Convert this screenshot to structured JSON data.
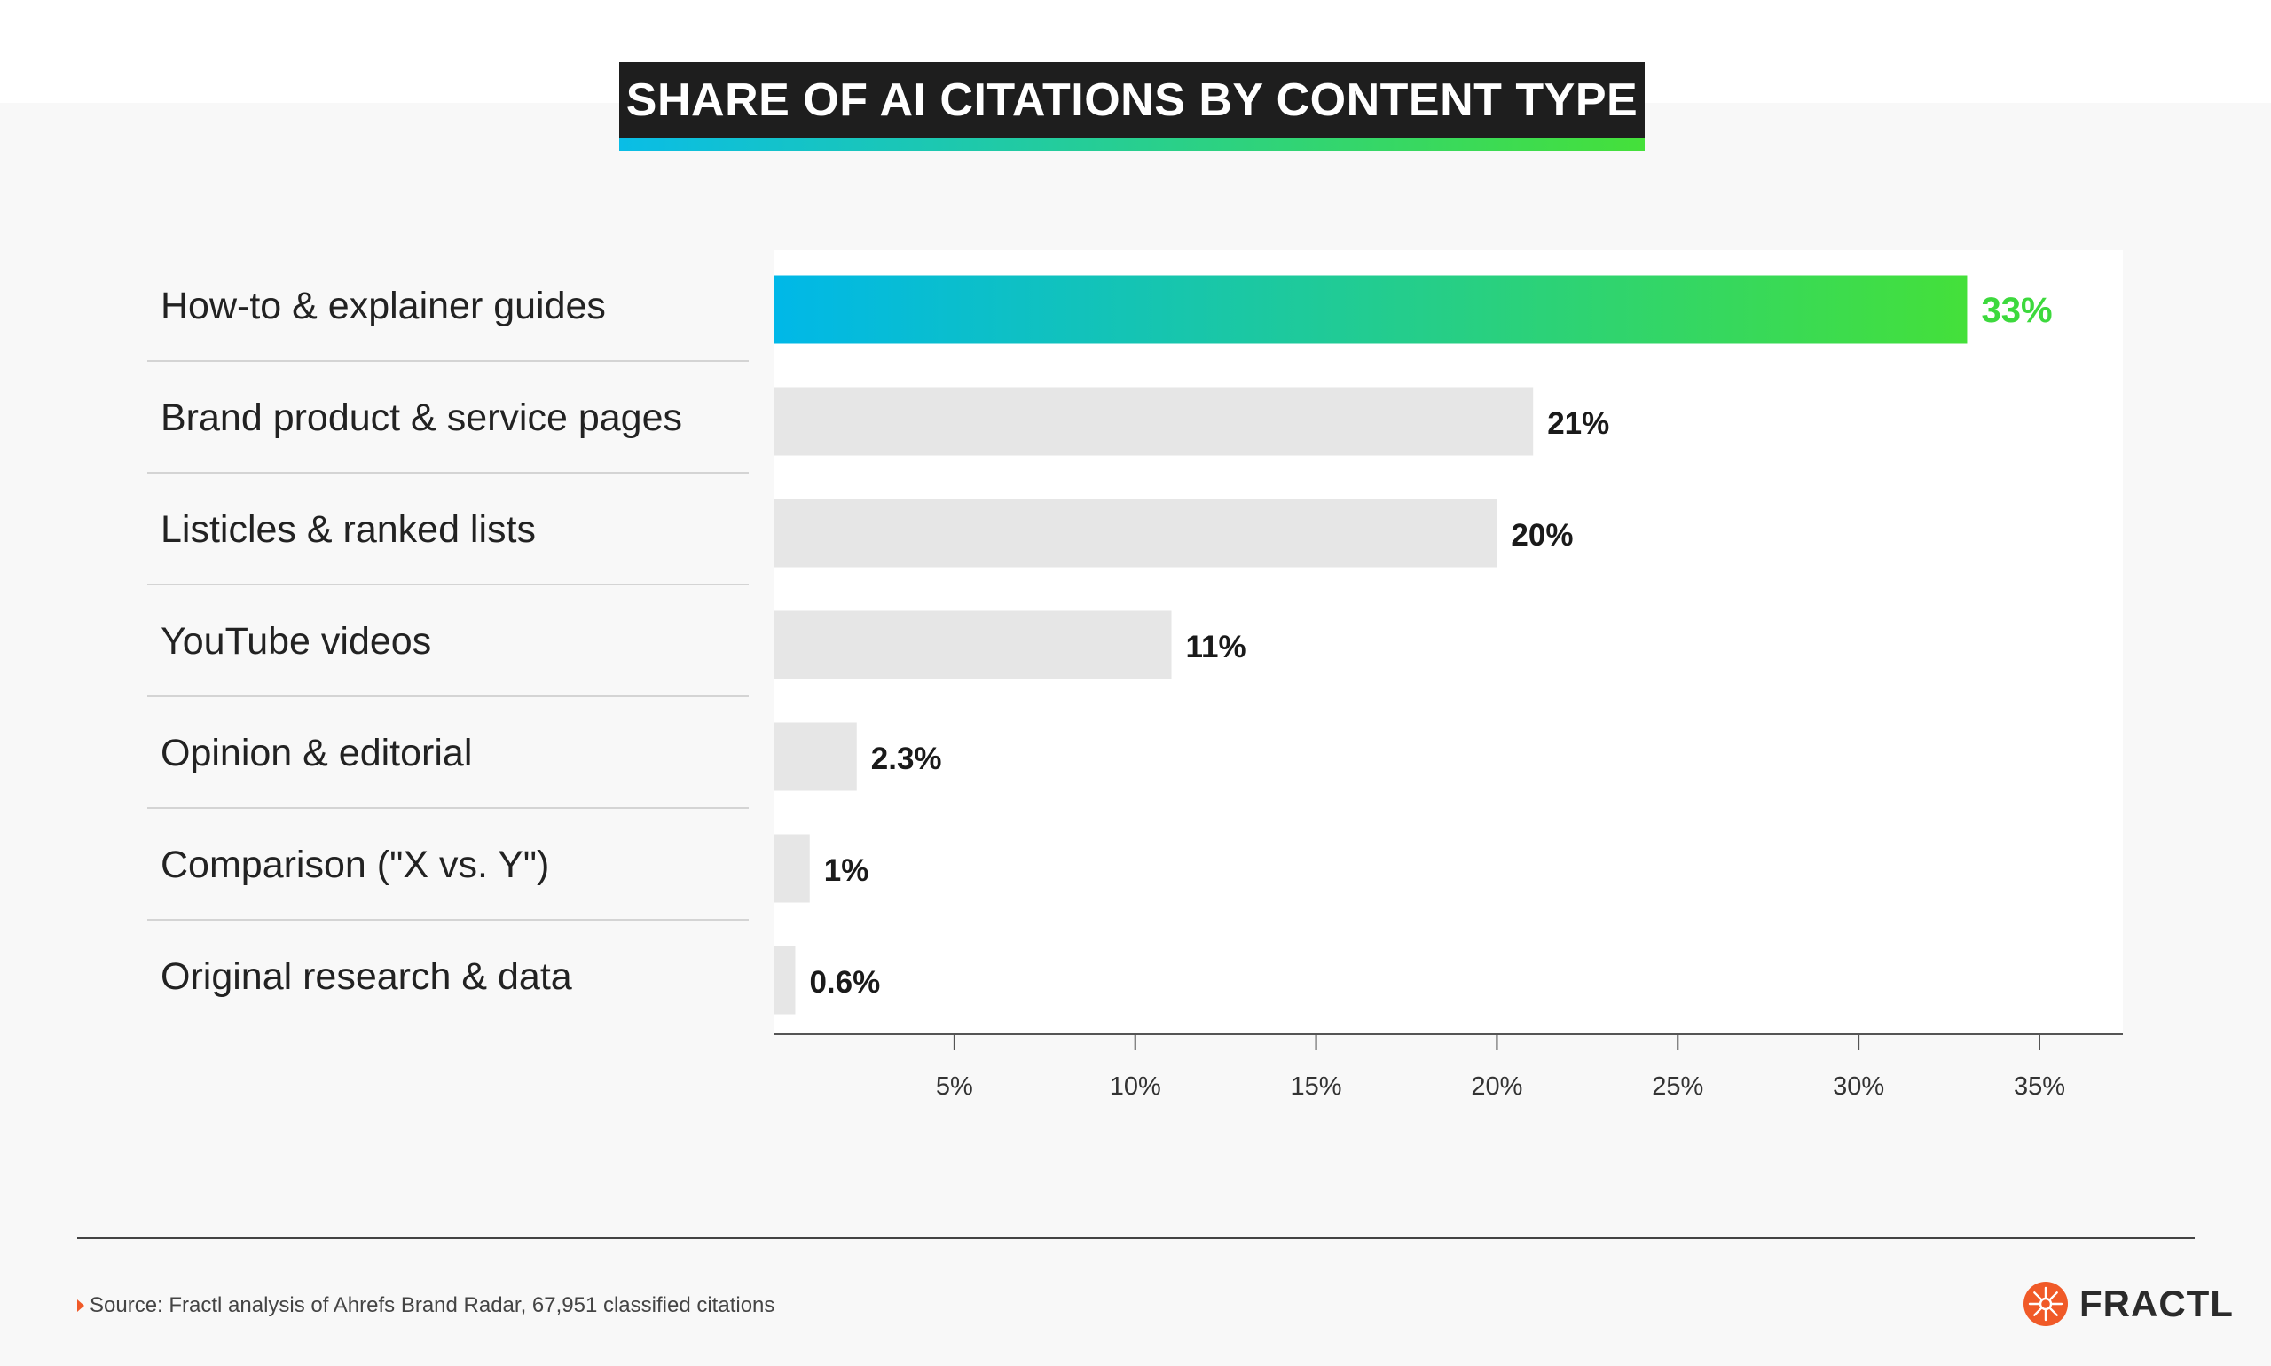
{
  "title": "SHARE OF AI CITATIONS BY CONTENT TYPE",
  "chart_data": {
    "type": "bar",
    "orientation": "horizontal",
    "title": "SHARE OF AI CITATIONS BY CONTENT TYPE",
    "categories": [
      "How-to & explainer guides",
      "Brand product & service pages",
      "Listicles & ranked lists",
      "YouTube videos",
      "Opinion & editorial",
      "Comparison (\"X vs. Y\")",
      "Original research & data"
    ],
    "values": [
      33,
      21,
      20,
      11,
      2.3,
      1,
      0.6
    ],
    "value_labels": [
      "33%",
      "21%",
      "20%",
      "11%",
      "2.3%",
      "1%",
      "0.6%"
    ],
    "xlim": [
      0,
      37
    ],
    "xticks": [
      5,
      10,
      15,
      20,
      25,
      30,
      35
    ],
    "xtick_labels": [
      "5%",
      "10%",
      "15%",
      "20%",
      "25%",
      "30%",
      "35%"
    ],
    "xlabel": "",
    "ylabel": "",
    "grid": false,
    "highlight_index": 0,
    "colors": {
      "highlight_start": "#00b8e8",
      "highlight_end": "#44e03a",
      "highlight_label": "#3dd93d",
      "bar": "#e6e6e6",
      "label": "#1a1a1a",
      "axis": "#555555"
    }
  },
  "footer": {
    "source": "Source: Fractl analysis of Ahrefs Brand Radar, 67,951 classified citations",
    "logo_text": "FRACTL",
    "logo_icon": "fractl-burst-icon",
    "logo_color": "#f05a28"
  }
}
